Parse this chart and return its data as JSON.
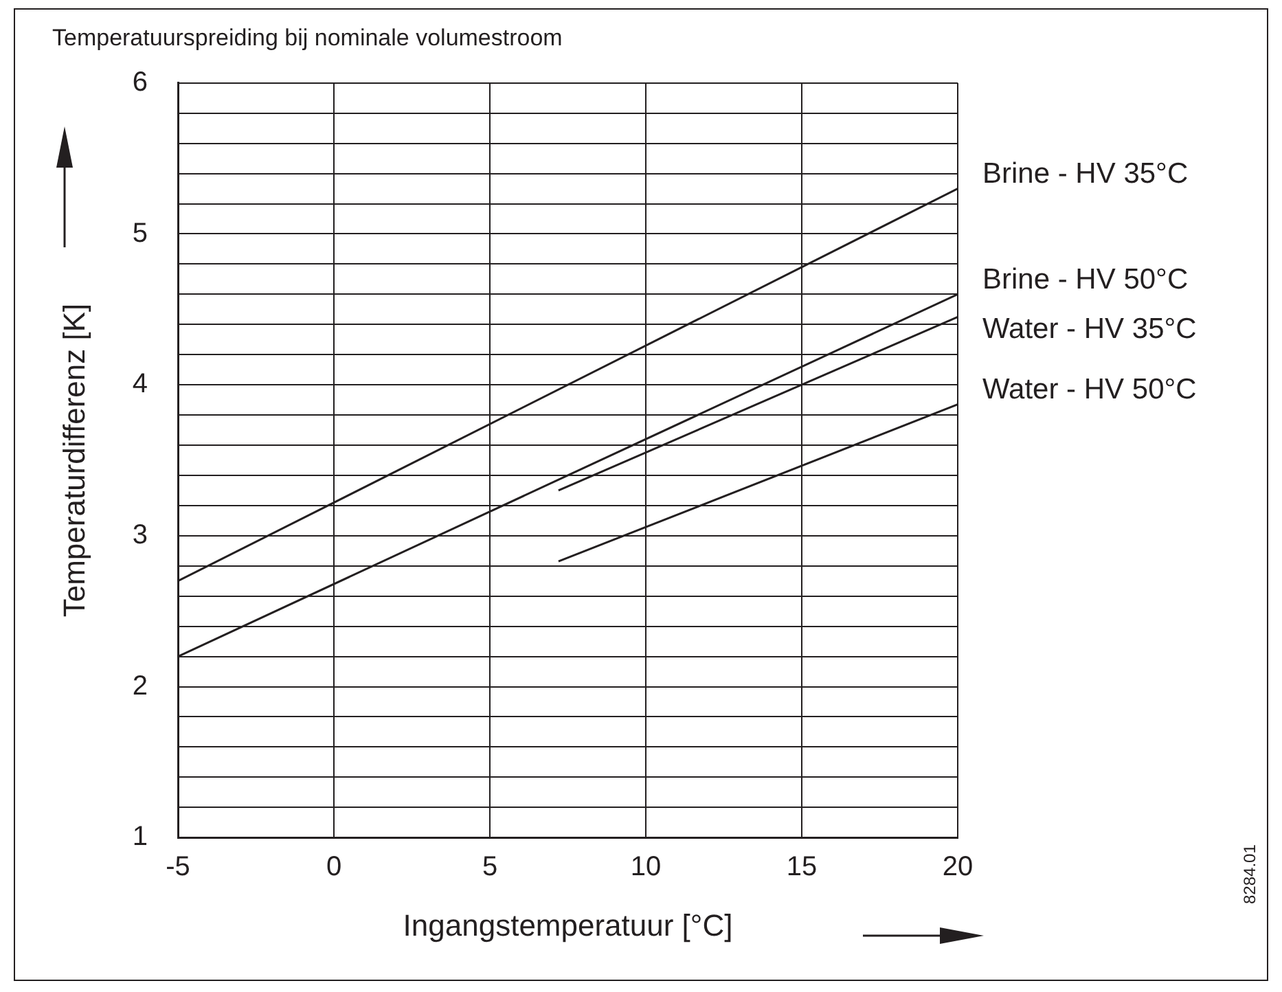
{
  "chart_data": {
    "type": "line",
    "title": "Temperatuurspreiding bij nominale volumestroom",
    "xlabel": "Ingangstemperatuur [°C]",
    "ylabel": "Temperaturdifferenz [K]",
    "series": [
      {
        "name": "Brine - HV 35°C",
        "color": "#231f20",
        "x": [
          -5,
          20
        ],
        "values": [
          2.7,
          5.3
        ]
      },
      {
        "name": "Brine - HV 50°C",
        "color": "#231f20",
        "x": [
          -5,
          20
        ],
        "values": [
          2.2,
          4.6
        ]
      },
      {
        "name": "Water - HV 35°C",
        "color": "#231f20",
        "x": [
          7.2,
          20
        ],
        "values": [
          3.3,
          4.45
        ]
      },
      {
        "name": "Water - HV 50°C",
        "color": "#231f20",
        "x": [
          7.2,
          20
        ],
        "values": [
          2.83,
          3.87
        ]
      }
    ],
    "xlim": [
      -5,
      20
    ],
    "xticks": [
      -5,
      0,
      5,
      10,
      15,
      20
    ],
    "ylim": [
      1,
      6
    ],
    "yticks": [
      1,
      {
        "value": 1.2,
        "label": null
      },
      {
        "value": 1.4,
        "label": null
      },
      {
        "value": 1.6,
        "label": null
      },
      {
        "value": 1.8,
        "label": null
      },
      2,
      {
        "value": 2.2,
        "label": null
      },
      {
        "value": 2.4,
        "label": null
      },
      {
        "value": 2.6,
        "label": null
      },
      {
        "value": 2.8,
        "label": null
      },
      3,
      {
        "value": 3.2,
        "label": null
      },
      {
        "value": 3.4,
        "label": null
      },
      {
        "value": 3.6,
        "label": null
      },
      {
        "value": 3.8,
        "label": null
      },
      4,
      {
        "value": 4.2,
        "label": null
      },
      {
        "value": 4.4,
        "label": null
      },
      {
        "value": 4.6,
        "label": null
      },
      {
        "value": 4.8,
        "label": null
      },
      5,
      {
        "value": 5.2,
        "label": null
      },
      {
        "value": 5.4,
        "label": null
      },
      {
        "value": 5.6,
        "label": null
      },
      {
        "value": 5.8,
        "label": null
      },
      6
    ],
    "grid": true,
    "legend": false,
    "marker": "none",
    "line_style": "solid",
    "annotations": [
      "8284.01"
    ]
  }
}
